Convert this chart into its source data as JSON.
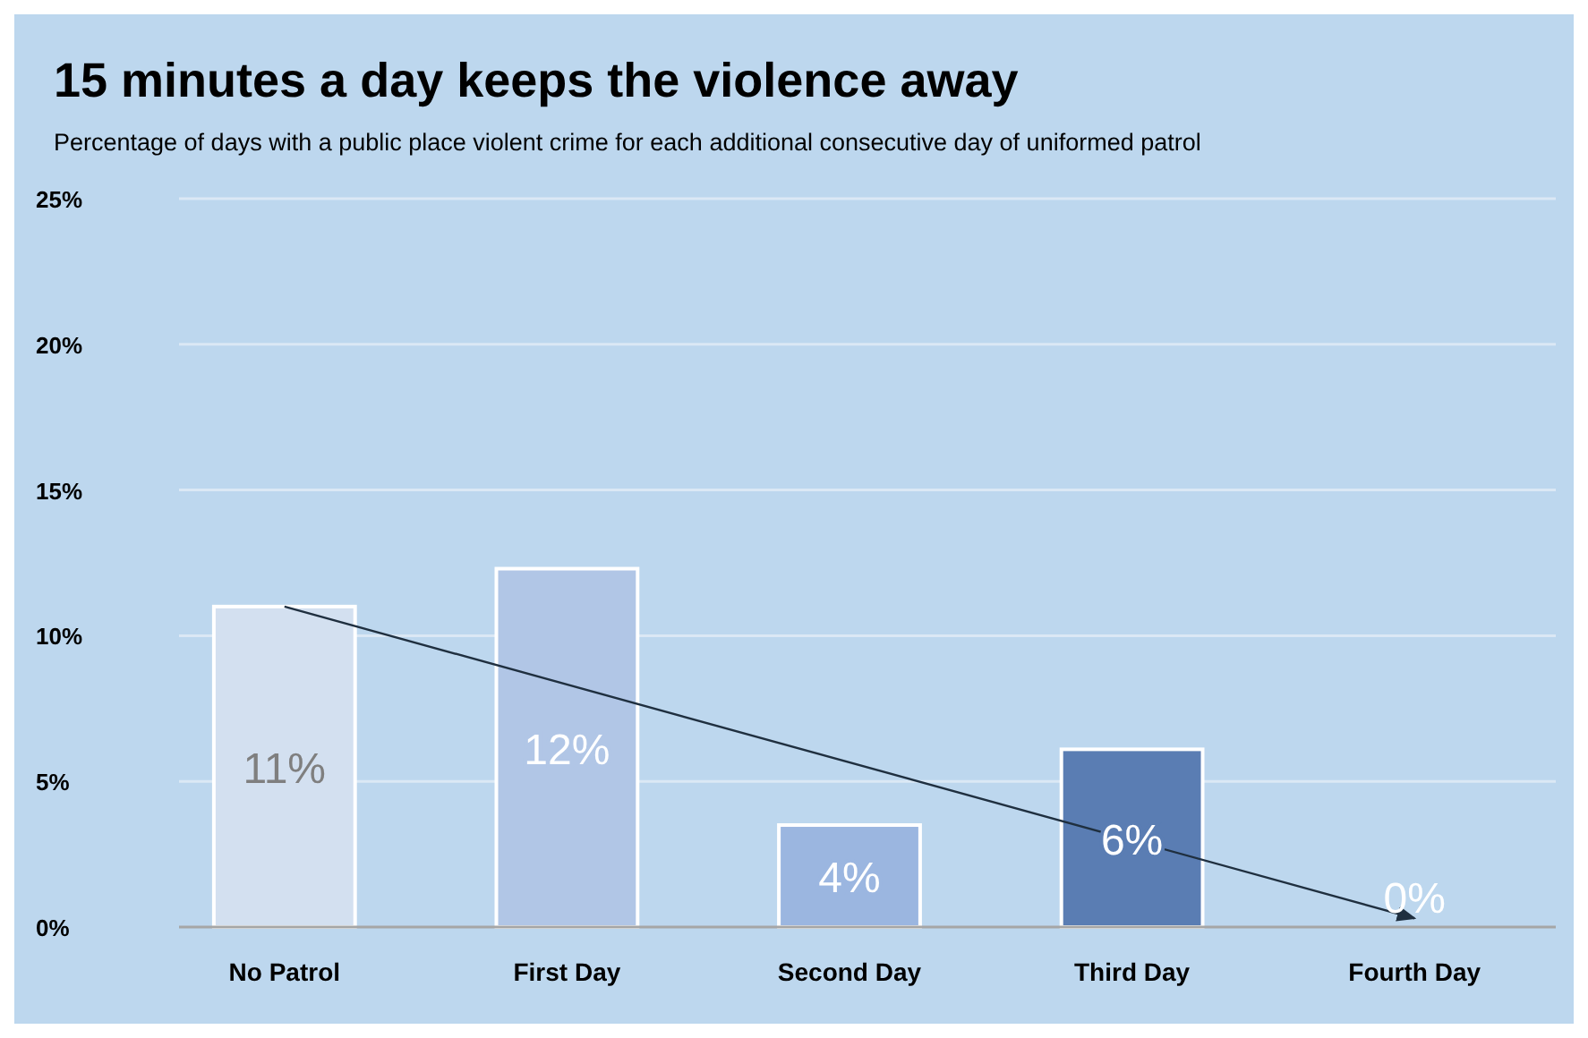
{
  "chart_data": {
    "type": "bar",
    "title": "15 minutes a day keeps the violence away",
    "subtitle": "Percentage of days with a public place violent crime for each additional consecutive day of uniformed patrol",
    "categories": [
      "No Patrol",
      "First Day",
      "Second Day",
      "Third Day",
      "Fourth Day"
    ],
    "series": [
      {
        "values": [
          11,
          12.3,
          3.5,
          6.1,
          0
        ],
        "colors": [
          "#d3e0f0",
          "#b1c6e6",
          "#9bb6e0",
          "#5a7db3",
          "#8faadc"
        ],
        "value_labels": [
          "11%",
          "12%",
          "4%",
          "6%",
          "0%"
        ]
      },
      {
        "type": "line",
        "x": [
          "No Patrol",
          "Fourth Day"
        ],
        "values": [
          11,
          0.3
        ],
        "color": "#1f2f3f",
        "marker": "none",
        "line_style": "solid"
      }
    ],
    "ylim": [
      0,
      25
    ],
    "yticks": [
      {
        "value": 0,
        "label": "0%"
      },
      {
        "value": 5,
        "label": "5%"
      },
      {
        "value": 10,
        "label": "10%"
      },
      {
        "value": 15,
        "label": "15%"
      },
      {
        "value": 20,
        "label": "20%"
      },
      {
        "value": 25,
        "label": "25%"
      }
    ],
    "grid": "y"
  }
}
